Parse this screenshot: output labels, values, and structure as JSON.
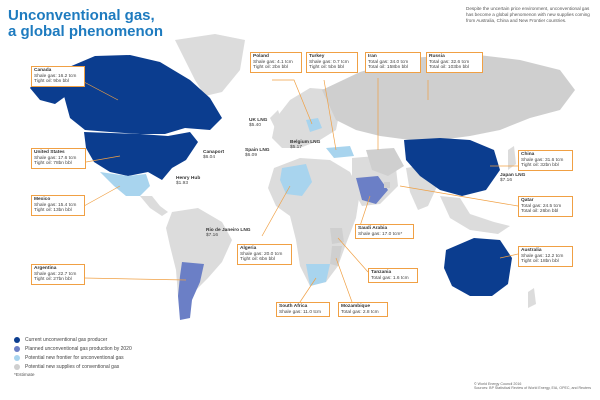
{
  "title_line1": "Unconventional gas,",
  "title_line2": "a global phenomenon",
  "intro": "Despite the uncertain price environment, unconventional gas has become a global phenomenon with new supplies coming from Australia, China and New Frontier countries.",
  "colors": {
    "current": "#0b3d8f",
    "planned": "#6b7fc6",
    "frontier": "#a8d4ee",
    "conventional": "#cfcfcf",
    "land": "#dcdcdc",
    "leader": "#f0a044"
  },
  "countries": {
    "canada": {
      "name": "Canada",
      "l1": "Shale gas: 16.2 tcm",
      "l2": "Tight oil: 9bn bbl"
    },
    "united_states": {
      "name": "United States",
      "l1": "Shale gas: 17.6 tcm",
      "l2": "Tight oil: 78bn bbl"
    },
    "mexico": {
      "name": "Mexico",
      "l1": "Shale gas: 15.4 tcm",
      "l2": "Tight oil: 13bn bbl"
    },
    "argentina": {
      "name": "Argentina",
      "l1": "Shale gas: 22.7 tcm",
      "l2": "Tight oil: 27bn bbl"
    },
    "poland": {
      "name": "Poland",
      "l1": "Shale gas: 4.1 tcm",
      "l2": "Tight oil: 2bn bbl"
    },
    "turkey": {
      "name": "Turkey",
      "l1": "Shale gas: 0.7 tcm",
      "l2": "Tight oil: 5bn bbl"
    },
    "iran": {
      "name": "Iran",
      "l1": "Total gas: 34.0 tcm",
      "l2": "Total oil: 158bn bbl"
    },
    "russia": {
      "name": "Russia",
      "l1": "Total gas: 32.6 tcm",
      "l2": "Total oil: 103bn bbl"
    },
    "china": {
      "name": "China",
      "l1": "Shale gas: 31.6 tcm",
      "l2": "Tight oil: 32bn bbl"
    },
    "qatar": {
      "name": "Qatar",
      "l1": "Total gas: 24.5 tcm",
      "l2": "Total oil: 26bn bbl"
    },
    "australia": {
      "name": "Australia",
      "l1": "Shale gas: 12.2 tcm",
      "l2": "Tight oil: 18bn bbl"
    },
    "saudi_arabia": {
      "name": "Saudi Arabia",
      "l1": "Shale gas: 17.0 tcm*"
    },
    "algeria": {
      "name": "Algeria",
      "l1": "Shale gas: 20.0 tcm",
      "l2": "Tight oil: 6bn bbl"
    },
    "tanzania": {
      "name": "Tanzania",
      "l1": "Total gas: 1.6 tcm"
    },
    "south_africa": {
      "name": "South Africa",
      "l1": "Shale gas: 11.0 tcm"
    },
    "mozambique": {
      "name": "Mozambique",
      "l1": "Total gas: 2.8 tcm"
    }
  },
  "lng": {
    "uk": {
      "name": "UK LNG",
      "price": "$5.40"
    },
    "belgium": {
      "name": "Belgium LNG",
      "price": "$5.17"
    },
    "spain": {
      "name": "Spain LNG",
      "price": "$6.09"
    },
    "canaport": {
      "name": "Canaport",
      "price": "$6.04"
    },
    "henry_hub": {
      "name": "Henry Hub",
      "price": "$1.93"
    },
    "rio": {
      "name": "Rio de Janeiro LNG",
      "price": "$7.16"
    },
    "japan": {
      "name": "Japan LNG",
      "price": "$7.16"
    }
  },
  "legend": [
    {
      "label": "Current unconventional gas producer",
      "color": "#0b3d8f"
    },
    {
      "label": "Planned unconventional gas production by 2020",
      "color": "#6b7fc6"
    },
    {
      "label": "Potential new frontier for unconventional gas",
      "color": "#a8d4ee"
    },
    {
      "label": "Potential new supplies of conventional gas",
      "color": "#cfcfcf"
    }
  ],
  "legend_note": "*Estimate",
  "source_line1": "© World Energy Council 2016",
  "source_line2": "Sources: BP Statistical Review of World Energy, EIA, OPEC, and Reuters"
}
